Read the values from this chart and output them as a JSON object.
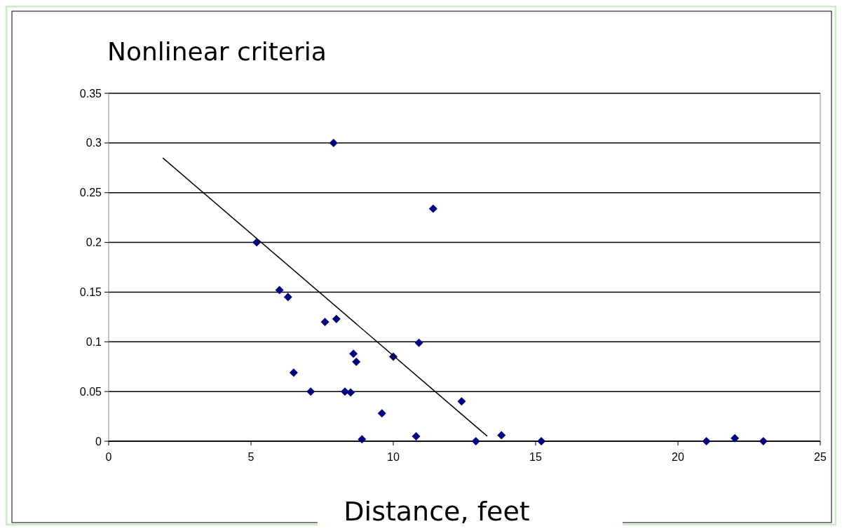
{
  "chart_data": {
    "type": "scatter",
    "title": "Nonlinear criteria",
    "xlabel": "Distance, feet",
    "xlim": [
      0,
      25
    ],
    "xticks": [
      0,
      5,
      10,
      15,
      20,
      25
    ],
    "ylim": [
      0,
      0.35
    ],
    "yticks": [
      0,
      0.05,
      0.1,
      0.15,
      0.2,
      0.25,
      0.3,
      0.35
    ],
    "grid": "y",
    "marker": "diamond",
    "series": [
      {
        "color": "#000080",
        "x": [
          5.2,
          6.0,
          6.3,
          7.9,
          7.6,
          8.0,
          6.5,
          7.1,
          8.3,
          8.5,
          8.6,
          8.7,
          8.9,
          9.6,
          10.0,
          10.8,
          10.9,
          11.4,
          12.4,
          12.9,
          13.8,
          15.2,
          21.0,
          22.0,
          23.0
        ],
        "values": [
          0.2,
          0.152,
          0.145,
          0.3,
          0.12,
          0.123,
          0.069,
          0.05,
          0.05,
          0.049,
          0.088,
          0.08,
          0.002,
          0.028,
          0.085,
          0.005,
          0.099,
          0.234,
          0.04,
          0,
          0.006,
          0,
          0,
          0.003,
          0
        ]
      },
      {
        "type": "line",
        "color": "#000000",
        "marker": "none",
        "x": [
          1.9,
          13.3
        ],
        "values": [
          0.285,
          0.005
        ]
      }
    ]
  }
}
